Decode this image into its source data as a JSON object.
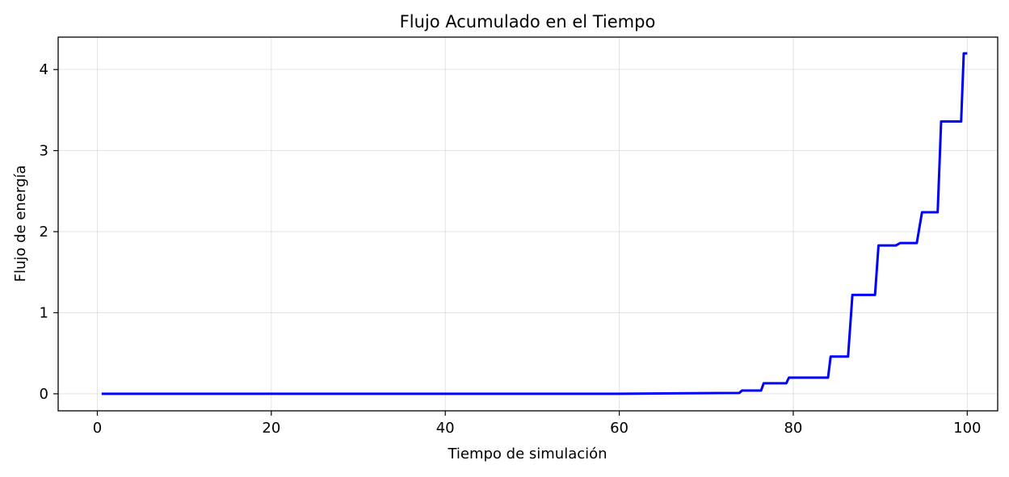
{
  "chart_data": {
    "type": "line",
    "title": "Flujo Acumulado en el Tiempo",
    "xlabel": "Tiempo de simulación",
    "ylabel": "Flujo de energía",
    "xlim": [
      -4.5,
      103.5
    ],
    "ylim": [
      -0.21,
      4.4
    ],
    "xticks": [
      0,
      20,
      40,
      60,
      80,
      100
    ],
    "xtick_labels": [
      "0",
      "20",
      "40",
      "60",
      "80",
      "100"
    ],
    "yticks": [
      0,
      1,
      2,
      3,
      4
    ],
    "ytick_labels": [
      "0",
      "1",
      "2",
      "3",
      "4"
    ],
    "grid": true,
    "series": [
      {
        "color": "#0000ff",
        "x": [
          0.5,
          60,
          66,
          73.8,
          74.1,
          76.3,
          76.6,
          79.2,
          79.5,
          84.0,
          84.3,
          86.3,
          86.8,
          89.4,
          89.8,
          91.8,
          92.3,
          94.2,
          94.8,
          96.6,
          97.0,
          99.3,
          99.6,
          100.0
        ],
        "y": [
          0.0,
          0.0,
          0.005,
          0.01,
          0.04,
          0.04,
          0.13,
          0.13,
          0.2,
          0.2,
          0.46,
          0.46,
          1.22,
          1.22,
          1.83,
          1.83,
          1.86,
          1.86,
          2.24,
          2.24,
          3.36,
          3.36,
          4.2,
          4.2
        ]
      }
    ]
  }
}
